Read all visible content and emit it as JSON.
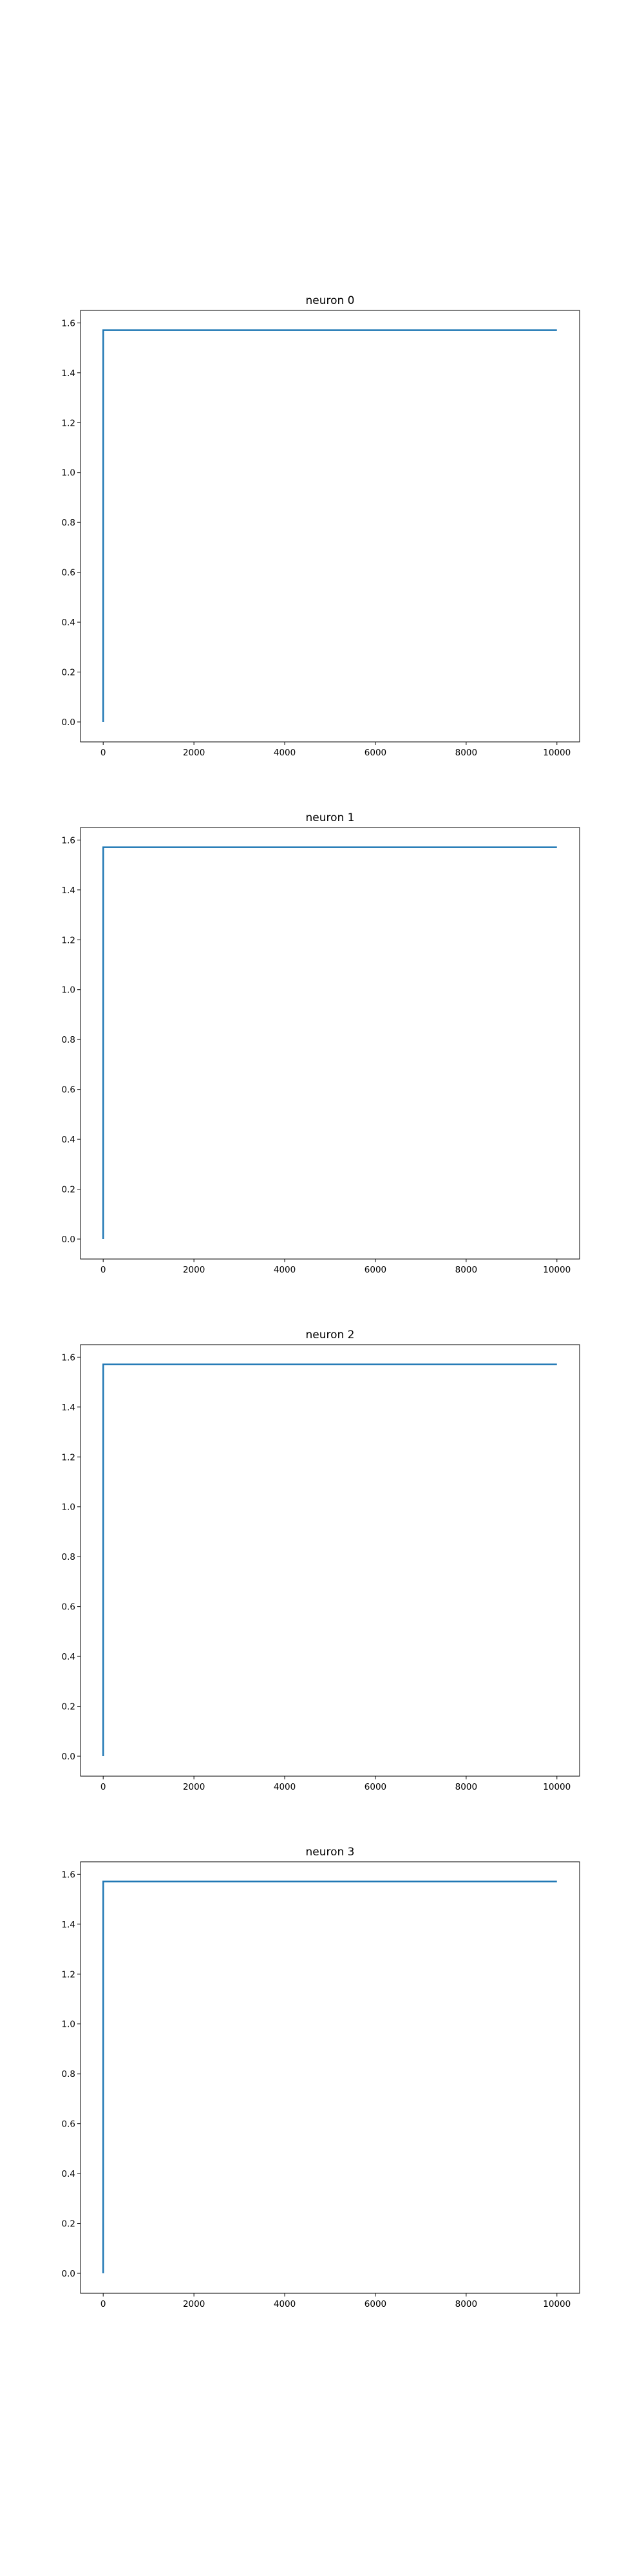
{
  "chart_data": [
    {
      "type": "line",
      "title": "neuron 0",
      "xlabel": "",
      "ylabel": "",
      "xlim": [
        -500,
        10500
      ],
      "ylim": [
        -0.08,
        1.65
      ],
      "xticks": [
        0,
        2000,
        4000,
        6000,
        8000,
        10000
      ],
      "xtick_labels": [
        "0",
        "2000",
        "4000",
        "6000",
        "8000",
        "10000"
      ],
      "yticks": [
        0.0,
        0.2,
        0.4,
        0.6,
        0.8,
        1.0,
        1.2,
        1.4,
        1.6
      ],
      "ytick_labels": [
        "0.0",
        "0.2",
        "0.4",
        "0.6",
        "0.8",
        "1.0",
        "1.2",
        "1.4",
        "1.6"
      ],
      "grid": false,
      "series": [
        {
          "color": "#1f77b4",
          "x": [
            0,
            1,
            10000
          ],
          "y": [
            0.0,
            1.5708,
            1.5708
          ]
        }
      ]
    },
    {
      "type": "line",
      "title": "neuron 1",
      "xlabel": "",
      "ylabel": "",
      "xlim": [
        -500,
        10500
      ],
      "ylim": [
        -0.08,
        1.65
      ],
      "xticks": [
        0,
        2000,
        4000,
        6000,
        8000,
        10000
      ],
      "xtick_labels": [
        "0",
        "2000",
        "4000",
        "6000",
        "8000",
        "10000"
      ],
      "yticks": [
        0.0,
        0.2,
        0.4,
        0.6,
        0.8,
        1.0,
        1.2,
        1.4,
        1.6
      ],
      "ytick_labels": [
        "0.0",
        "0.2",
        "0.4",
        "0.6",
        "0.8",
        "1.0",
        "1.2",
        "1.4",
        "1.6"
      ],
      "grid": false,
      "series": [
        {
          "color": "#1f77b4",
          "x": [
            0,
            1,
            10000
          ],
          "y": [
            0.0,
            1.5708,
            1.5708
          ]
        }
      ]
    },
    {
      "type": "line",
      "title": "neuron 2",
      "xlabel": "",
      "ylabel": "",
      "xlim": [
        -500,
        10500
      ],
      "ylim": [
        -0.08,
        1.65
      ],
      "xticks": [
        0,
        2000,
        4000,
        6000,
        8000,
        10000
      ],
      "xtick_labels": [
        "0",
        "2000",
        "4000",
        "6000",
        "8000",
        "10000"
      ],
      "yticks": [
        0.0,
        0.2,
        0.4,
        0.6,
        0.8,
        1.0,
        1.2,
        1.4,
        1.6
      ],
      "ytick_labels": [
        "0.0",
        "0.2",
        "0.4",
        "0.6",
        "0.8",
        "1.0",
        "1.2",
        "1.4",
        "1.6"
      ],
      "grid": false,
      "series": [
        {
          "color": "#1f77b4",
          "x": [
            0,
            1,
            10000
          ],
          "y": [
            0.0,
            1.5708,
            1.5708
          ]
        }
      ]
    },
    {
      "type": "line",
      "title": "neuron 3",
      "xlabel": "",
      "ylabel": "",
      "xlim": [
        -500,
        10500
      ],
      "ylim": [
        -0.08,
        1.65
      ],
      "xticks": [
        0,
        2000,
        4000,
        6000,
        8000,
        10000
      ],
      "xtick_labels": [
        "0",
        "2000",
        "4000",
        "6000",
        "8000",
        "10000"
      ],
      "yticks": [
        0.0,
        0.2,
        0.4,
        0.6,
        0.8,
        1.0,
        1.2,
        1.4,
        1.6
      ],
      "ytick_labels": [
        "0.0",
        "0.2",
        "0.4",
        "0.6",
        "0.8",
        "1.0",
        "1.2",
        "1.4",
        "1.6"
      ],
      "grid": false,
      "series": [
        {
          "color": "#1f77b4",
          "x": [
            0,
            1,
            10000
          ],
          "y": [
            0.0,
            1.5708,
            1.5708
          ]
        }
      ]
    }
  ]
}
